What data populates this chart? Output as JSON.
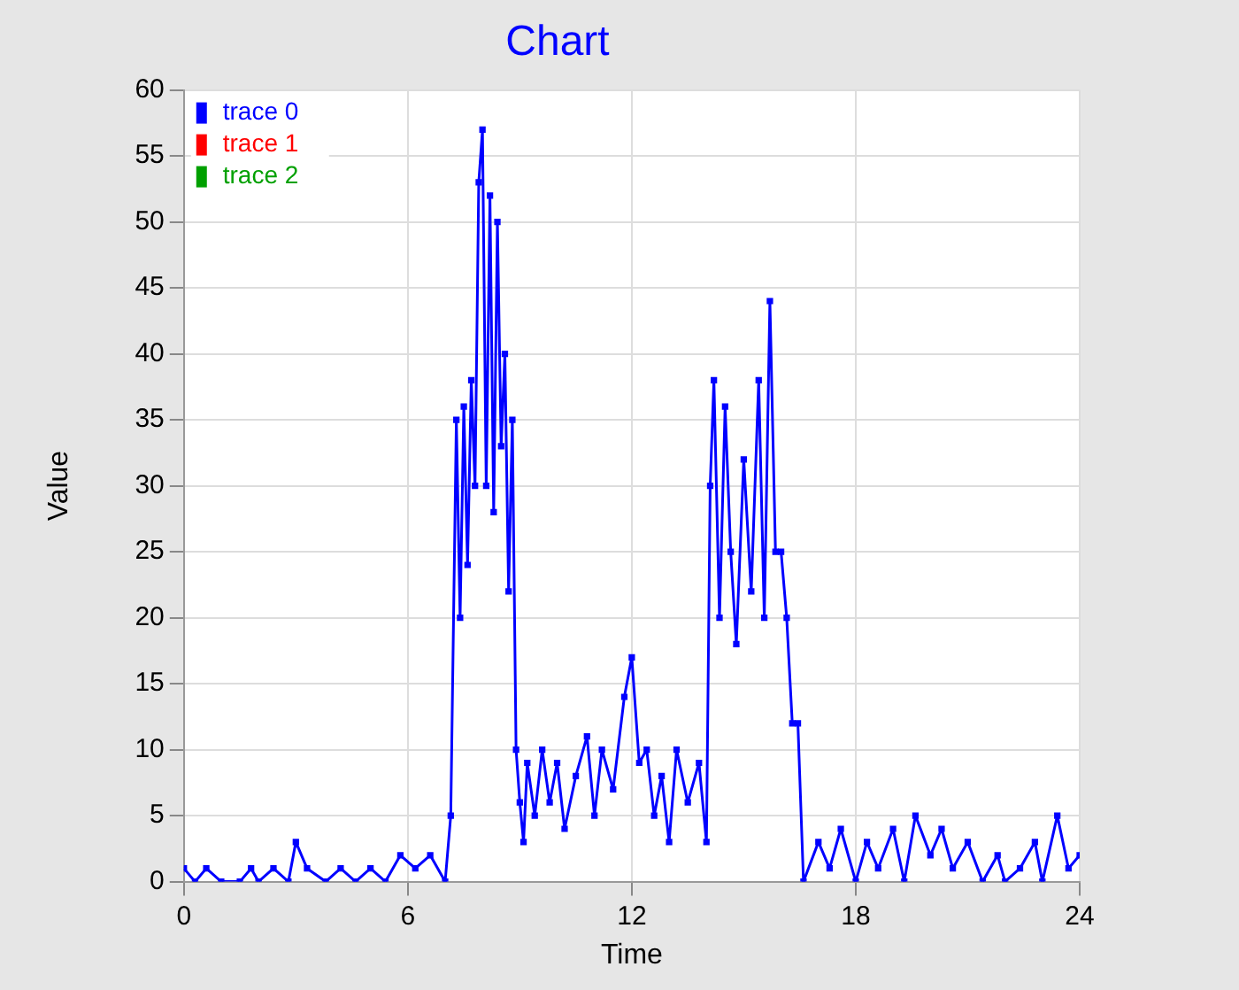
{
  "chart_data": {
    "type": "line",
    "title": "Chart",
    "xlabel": "Time",
    "ylabel": "Value",
    "xlim": [
      0,
      24
    ],
    "xticks": [
      0,
      6,
      12,
      18,
      24
    ],
    "ylim": [
      0,
      60
    ],
    "yticks": [
      0,
      5,
      10,
      15,
      20,
      25,
      30,
      35,
      40,
      45,
      50,
      55,
      60
    ],
    "grid": true,
    "legend": "top left",
    "marker": "square",
    "line_style": "solid",
    "x": [
      0,
      0.3,
      0.6,
      1,
      1.5,
      1.8,
      2,
      2.4,
      2.8,
      3,
      3.3,
      3.8,
      4.2,
      4.6,
      5,
      5.4,
      5.8,
      6.2,
      6.6,
      7,
      7.15,
      7.3,
      7.4,
      7.5,
      7.6,
      7.7,
      7.8,
      7.9,
      8.0,
      8.1,
      8.2,
      8.3,
      8.4,
      8.5,
      8.6,
      8.7,
      8.8,
      8.9,
      9.0,
      9.1,
      9.2,
      9.4,
      9.6,
      9.8,
      10,
      10.2,
      10.5,
      10.8,
      11,
      11.2,
      11.5,
      11.8,
      12,
      12.2,
      12.4,
      12.6,
      12.8,
      13,
      13.2,
      13.5,
      13.8,
      14,
      14.1,
      14.2,
      14.35,
      14.5,
      14.65,
      14.8,
      15,
      15.2,
      15.4,
      15.55,
      15.7,
      15.85,
      16,
      16.15,
      16.3,
      16.45,
      16.6,
      17,
      17.3,
      17.6,
      18,
      18.3,
      18.6,
      19,
      19.3,
      19.6,
      20,
      20.3,
      20.6,
      21,
      21.4,
      21.8,
      22,
      22.4,
      22.8,
      23,
      23.4,
      23.7,
      24
    ],
    "series": [
      {
        "name": "trace 0",
        "color": "#0000ff",
        "values": [
          1,
          0,
          1,
          0,
          0,
          1,
          0,
          1,
          0,
          3,
          1,
          0,
          1,
          0,
          1,
          0,
          2,
          1,
          2,
          0,
          5,
          35,
          20,
          36,
          24,
          38,
          30,
          53,
          57,
          30,
          52,
          28,
          50,
          33,
          40,
          22,
          35,
          10,
          6,
          3,
          9,
          5,
          10,
          6,
          9,
          4,
          8,
          11,
          5,
          10,
          7,
          14,
          17,
          9,
          10,
          5,
          8,
          3,
          10,
          6,
          9,
          3,
          30,
          38,
          20,
          36,
          25,
          18,
          32,
          22,
          38,
          20,
          44,
          25,
          25,
          20,
          12,
          12,
          0,
          3,
          1,
          4,
          0,
          3,
          1,
          4,
          0,
          5,
          2,
          4,
          1,
          3,
          0,
          2,
          0,
          1,
          3,
          0,
          5,
          1,
          2
        ]
      },
      {
        "name": "trace 1",
        "color": "#ff0000",
        "values": [
          null,
          null,
          null,
          null,
          null,
          null,
          null,
          null,
          null,
          null,
          null,
          null,
          null,
          null,
          null,
          null,
          null,
          null,
          null,
          null,
          null,
          null,
          null,
          null,
          null,
          null,
          null,
          null,
          null,
          null,
          null,
          null,
          null,
          null,
          null,
          null,
          null,
          null,
          null,
          null,
          null,
          null,
          null,
          null,
          null,
          null,
          null,
          null,
          null,
          null,
          null,
          null,
          null,
          null,
          null,
          null,
          null,
          null,
          null,
          null,
          null,
          null,
          null,
          null,
          null,
          null,
          null,
          null,
          null,
          null,
          null,
          null,
          null,
          null,
          null,
          null,
          null,
          null,
          null,
          null,
          null,
          null,
          null,
          null,
          null,
          null,
          null,
          null,
          null,
          null,
          null,
          null,
          null,
          null,
          null,
          null,
          null,
          null,
          null,
          null,
          null
        ]
      },
      {
        "name": "trace 2",
        "color": "#00a000",
        "values": [
          null,
          null,
          null,
          null,
          null,
          null,
          null,
          null,
          null,
          null,
          null,
          null,
          null,
          null,
          null,
          null,
          null,
          null,
          null,
          null,
          null,
          null,
          null,
          null,
          null,
          null,
          null,
          null,
          null,
          null,
          null,
          null,
          null,
          null,
          null,
          null,
          null,
          null,
          null,
          null,
          null,
          null,
          null,
          null,
          null,
          null,
          null,
          null,
          null,
          null,
          null,
          null,
          null,
          null,
          null,
          null,
          null,
          null,
          null,
          null,
          null,
          null,
          null,
          null,
          null,
          null,
          null,
          null,
          null,
          null,
          null,
          null,
          null,
          null,
          null,
          null,
          null,
          null,
          null,
          null,
          null,
          null,
          null,
          null,
          null,
          null,
          null,
          null,
          null,
          null,
          null,
          null,
          null,
          null,
          null,
          null,
          null,
          null,
          null,
          null,
          null
        ]
      }
    ]
  }
}
